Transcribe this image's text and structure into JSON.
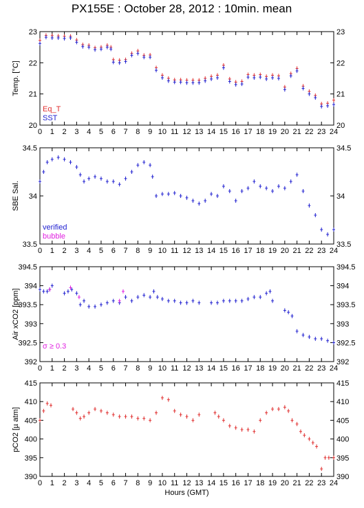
{
  "title": "PX155E : October 28, 2012 : 10min. mean",
  "colors": {
    "red": "#e03030",
    "blue": "#2020d0",
    "magenta": "#e020e0",
    "frame": "#000000"
  },
  "chart_data": [
    {
      "type": "scatter",
      "panel": "temperature",
      "ylabel": "Temp. [°C]",
      "ylim": [
        20,
        23
      ],
      "yticks": [
        20,
        21,
        22,
        23
      ],
      "xlim": [
        0,
        24
      ],
      "xticks": [
        0,
        1,
        2,
        3,
        4,
        5,
        6,
        7,
        8,
        9,
        10,
        11,
        12,
        13,
        14,
        15,
        16,
        17,
        18,
        19,
        20,
        21,
        22,
        23,
        24
      ],
      "xtick_labels": [
        "0",
        "1",
        "2",
        "3",
        "4",
        "5",
        "6",
        "7",
        "8",
        "9",
        "10",
        "11",
        "12",
        "13",
        "14",
        "15",
        "16",
        "17",
        "18",
        "19",
        "20",
        "21",
        "22",
        "23",
        "24"
      ],
      "legend": [
        "Eq_T",
        "SST"
      ],
      "series": [
        {
          "name": "Eq_T",
          "color": "#e03030",
          "x": [
            0,
            0.5,
            1,
            1.5,
            2,
            2.5,
            3,
            3.5,
            4,
            4.5,
            5,
            5.5,
            5.8,
            6,
            6.5,
            7,
            7.5,
            8,
            8.5,
            9,
            9.5,
            10,
            10.5,
            11,
            11.5,
            12,
            12.5,
            13,
            13.5,
            14,
            14.5,
            15,
            15.5,
            16,
            16.5,
            17,
            17.5,
            18,
            18.5,
            19,
            19.5,
            20,
            20.5,
            21,
            21.5,
            22,
            22.5,
            23,
            23.5,
            24
          ],
          "y": [
            22.72,
            22.88,
            22.87,
            22.86,
            22.85,
            22.85,
            22.73,
            22.58,
            22.56,
            22.48,
            22.5,
            22.56,
            22.5,
            22.1,
            22.08,
            22.1,
            22.3,
            22.38,
            22.24,
            22.25,
            21.84,
            21.6,
            21.5,
            21.45,
            21.45,
            21.44,
            21.44,
            21.44,
            21.5,
            21.56,
            21.6,
            21.92,
            21.48,
            21.38,
            21.4,
            21.62,
            21.6,
            21.62,
            21.56,
            21.6,
            21.58,
            21.22,
            21.65,
            21.82,
            21.25,
            21.08,
            20.95,
            20.68,
            20.7,
            20.8
          ]
        },
        {
          "name": "SST",
          "color": "#2020d0",
          "x": [
            0,
            0.5,
            1,
            1.5,
            2,
            2.5,
            3,
            3.5,
            4,
            4.5,
            5,
            5.5,
            5.8,
            6,
            6.5,
            7,
            7.5,
            8,
            8.5,
            9,
            9.5,
            10,
            10.5,
            11,
            11.5,
            12,
            12.5,
            13,
            13.5,
            14,
            14.5,
            15,
            15.5,
            16,
            16.5,
            17,
            17.5,
            18,
            18.5,
            19,
            19.5,
            20,
            20.5,
            21,
            21.5,
            22,
            22.5,
            23,
            23.5,
            24
          ],
          "y": [
            22.62,
            22.82,
            22.8,
            22.8,
            22.78,
            22.8,
            22.66,
            22.52,
            22.5,
            22.42,
            22.44,
            22.5,
            22.44,
            22.02,
            22.0,
            22.04,
            22.24,
            22.3,
            22.18,
            22.18,
            21.76,
            21.52,
            21.42,
            21.38,
            21.38,
            21.36,
            21.36,
            21.36,
            21.42,
            21.48,
            21.52,
            21.84,
            21.4,
            21.3,
            21.32,
            21.54,
            21.52,
            21.54,
            21.48,
            21.52,
            21.5,
            21.14,
            21.58,
            21.74,
            21.18,
            21.0,
            20.88,
            20.6,
            20.62,
            20.66
          ]
        }
      ]
    },
    {
      "type": "scatter",
      "panel": "salinity",
      "ylabel": "SBE Sal.",
      "ylim": [
        33.5,
        34.5
      ],
      "yticks": [
        33.5,
        34,
        34.5
      ],
      "ytick_labels": [
        "33.5",
        "34",
        "34.5"
      ],
      "xlim": [
        0,
        24
      ],
      "xticks": [
        0,
        1,
        2,
        3,
        4,
        5,
        6,
        7,
        8,
        9,
        10,
        11,
        12,
        13,
        14,
        15,
        16,
        17,
        18,
        19,
        20,
        21,
        22,
        23,
        24
      ],
      "xtick_labels": [
        "0",
        "1",
        "2",
        "3",
        "4",
        "5",
        "6",
        "7",
        "8",
        "9",
        "10",
        "11",
        "12",
        "13",
        "14",
        "15",
        "16",
        "17",
        "18",
        "19",
        "20",
        "21",
        "22",
        "23",
        "24"
      ],
      "legend": [
        "verified",
        "bubble"
      ],
      "series": [
        {
          "name": "verified",
          "color": "#2020d0",
          "x": [
            0,
            0.3,
            0.6,
            1,
            1.5,
            2,
            2.5,
            3,
            3.3,
            3.6,
            4,
            4.5,
            5,
            5.5,
            6,
            6.5,
            7,
            7.5,
            8,
            8.5,
            9,
            9.2,
            9.5,
            10,
            10.5,
            11,
            11.5,
            12,
            12.5,
            13,
            13.5,
            14,
            14.5,
            15,
            15.5,
            16,
            16.5,
            17,
            17.5,
            18,
            18.5,
            19,
            19.5,
            20,
            20.5,
            21,
            21.5,
            22,
            22.5,
            23,
            23.5,
            24
          ],
          "y": [
            34.15,
            34.25,
            34.35,
            34.38,
            34.4,
            34.38,
            34.35,
            34.3,
            34.22,
            34.15,
            34.18,
            34.2,
            34.18,
            34.15,
            34.15,
            34.12,
            34.18,
            34.25,
            34.32,
            34.35,
            34.32,
            34.2,
            34.0,
            34.02,
            34.02,
            34.03,
            34.0,
            33.98,
            33.95,
            33.92,
            33.95,
            34.02,
            34.0,
            34.1,
            34.05,
            33.95,
            34.05,
            34.08,
            34.15,
            34.1,
            34.08,
            34.05,
            34.1,
            34.08,
            34.15,
            34.22,
            34.05,
            33.9,
            33.8,
            33.65,
            33.6,
            33.65
          ]
        }
      ]
    },
    {
      "type": "scatter",
      "panel": "air-xco2",
      "ylabel": "Air xCO2 [ppm]",
      "ylim": [
        392,
        394.5
      ],
      "yticks": [
        392,
        392.5,
        393,
        393.5,
        394,
        394.5
      ],
      "ytick_labels": [
        "392",
        "392.5",
        "393",
        "393.5",
        "394",
        "394.5"
      ],
      "xlim": [
        0,
        24
      ],
      "xticks": [
        0,
        1,
        2,
        3,
        4,
        5,
        6,
        7,
        8,
        9,
        10,
        11,
        12,
        13,
        14,
        15,
        16,
        17,
        18,
        19,
        20,
        21,
        22,
        23,
        24
      ],
      "xtick_labels": [
        "0",
        "1",
        "2",
        "3",
        "4",
        "5",
        "6",
        "7",
        "8",
        "9",
        "10",
        "11",
        "12",
        "13",
        "14",
        "15",
        "16",
        "17",
        "18",
        "19",
        "20",
        "21",
        "22",
        "23",
        "24"
      ],
      "legend": [
        "σ ≥ 0.3"
      ],
      "series": [
        {
          "name": "verified",
          "color": "#2020d0",
          "x": [
            0,
            0.3,
            0.6,
            0.8,
            1,
            2,
            2.3,
            2.6,
            3,
            3.3,
            3.6,
            4,
            4.5,
            5,
            5.5,
            6,
            6.5,
            7,
            7.5,
            8,
            8.5,
            9,
            9.3,
            9.6,
            10,
            10.5,
            11,
            11.5,
            12,
            12.5,
            13,
            14,
            14.5,
            15,
            15.5,
            16,
            16.5,
            17,
            17.5,
            18,
            18.5,
            18.8,
            19,
            20,
            20.3,
            20.6,
            21,
            21.5,
            22,
            22.5,
            23,
            23.5,
            24
          ],
          "y": [
            393.9,
            393.85,
            393.85,
            393.9,
            394.0,
            393.8,
            393.85,
            393.9,
            393.8,
            393.5,
            393.6,
            393.45,
            393.45,
            393.5,
            393.55,
            393.6,
            393.55,
            393.7,
            393.6,
            393.7,
            393.75,
            393.7,
            393.85,
            393.7,
            393.65,
            393.6,
            393.6,
            393.55,
            393.55,
            393.6,
            393.55,
            393.55,
            393.55,
            393.6,
            393.6,
            393.6,
            393.6,
            393.65,
            393.7,
            393.7,
            393.8,
            393.85,
            393.6,
            393.35,
            393.3,
            393.2,
            392.8,
            392.7,
            392.65,
            392.6,
            392.6,
            392.55,
            392.5
          ]
        },
        {
          "name": "bubble",
          "color": "#e020e0",
          "x": [
            0.8,
            2.5,
            3.2,
            6.5,
            6.8
          ],
          "y": [
            393.9,
            393.95,
            393.7,
            393.6,
            393.85
          ]
        }
      ]
    },
    {
      "type": "scatter",
      "panel": "pco2",
      "ylabel": "pCO2 [µ atm]",
      "ylim": [
        390,
        415
      ],
      "yticks": [
        390,
        395,
        400,
        405,
        410,
        415
      ],
      "ytick_labels": [
        "390",
        "395",
        "400",
        "405",
        "410",
        "415"
      ],
      "xlim": [
        0,
        24
      ],
      "xticks": [
        0,
        1,
        2,
        3,
        4,
        5,
        6,
        7,
        8,
        9,
        10,
        11,
        12,
        13,
        14,
        15,
        16,
        17,
        18,
        19,
        20,
        21,
        22,
        23,
        24
      ],
      "xtick_labels": [
        "0",
        "1",
        "2",
        "3",
        "4",
        "5",
        "6",
        "7",
        "8",
        "9",
        "10",
        "11",
        "12",
        "13",
        "14",
        "15",
        "16",
        "17",
        "18",
        "19",
        "20",
        "21",
        "22",
        "23",
        "24"
      ],
      "xlabel": "Hours (GMT)",
      "series": [
        {
          "name": "pCO2",
          "color": "#e03030",
          "x": [
            0,
            0.3,
            0.6,
            0.9,
            2.7,
            3,
            3.3,
            3.6,
            4,
            4.5,
            5,
            5.5,
            6,
            6.5,
            7,
            7.5,
            8,
            8.5,
            9,
            9.5,
            10,
            10.5,
            11,
            11.5,
            12,
            12.5,
            13,
            14.3,
            14.6,
            15,
            15.5,
            16,
            16.5,
            17,
            17.5,
            18,
            18.5,
            19,
            19.5,
            20,
            20.3,
            20.6,
            21,
            21.3,
            21.6,
            22,
            22.3,
            22.6,
            23,
            23.3,
            23.6,
            24
          ],
          "y": [
            405,
            407.5,
            409.5,
            409,
            408,
            407,
            405.5,
            406,
            407,
            408,
            407.5,
            407,
            406.5,
            406,
            406,
            406,
            405.5,
            405.5,
            405,
            407,
            411,
            410.5,
            407.5,
            406.5,
            406,
            405,
            406.5,
            407,
            406,
            405,
            403.5,
            403,
            402.5,
            402.5,
            402,
            405,
            407,
            408,
            408,
            408.5,
            407.5,
            405,
            404,
            402,
            401,
            400,
            399,
            398,
            392,
            395,
            395,
            395
          ]
        }
      ]
    }
  ]
}
